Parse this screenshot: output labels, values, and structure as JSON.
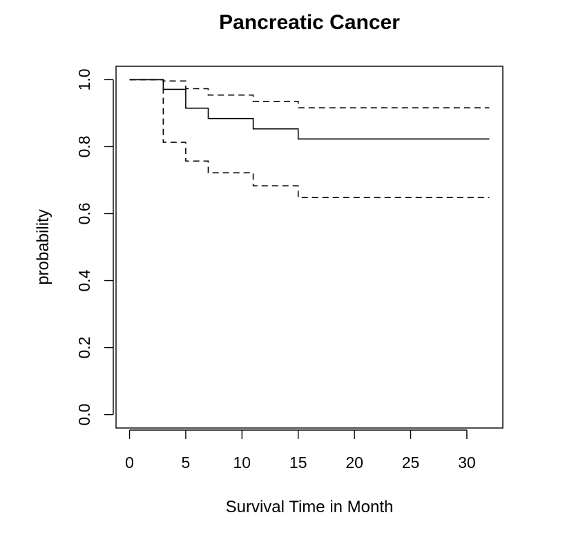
{
  "chart_data": {
    "type": "line",
    "title": "Pancreatic Cancer",
    "xlabel": "Survival Time in Month",
    "ylabel": "probability",
    "xlim": [
      -1.2,
      33.2
    ],
    "ylim": [
      -0.04,
      1.04
    ],
    "x_ticks": [
      0,
      5,
      10,
      15,
      20,
      25,
      30
    ],
    "x_tick_labels": [
      "0",
      "5",
      "10",
      "15",
      "20",
      "25",
      "30"
    ],
    "y_ticks": [
      0.0,
      0.2,
      0.4,
      0.6,
      0.8,
      1.0
    ],
    "y_tick_labels": [
      "0.0",
      "0.2",
      "0.4",
      "0.6",
      "0.8",
      "1.0"
    ],
    "grid": false,
    "legend": "none",
    "step": true,
    "series": [
      {
        "style": "solid",
        "color": "#000000",
        "x": [
          0,
          3,
          5,
          7,
          11,
          15,
          32
        ],
        "y": [
          1.0,
          0.971,
          0.915,
          0.884,
          0.853,
          0.823,
          0.823
        ]
      },
      {
        "style": "dashed",
        "color": "#000000",
        "x": [
          0,
          3,
          5,
          7,
          11,
          15,
          32
        ],
        "y": [
          1.0,
          0.996,
          0.973,
          0.954,
          0.935,
          0.916,
          0.916
        ]
      },
      {
        "style": "dashed",
        "color": "#000000",
        "x": [
          0,
          3,
          5,
          7,
          11,
          15,
          32
        ],
        "y": [
          1.0,
          0.813,
          0.757,
          0.722,
          0.683,
          0.648,
          0.648
        ]
      }
    ]
  }
}
